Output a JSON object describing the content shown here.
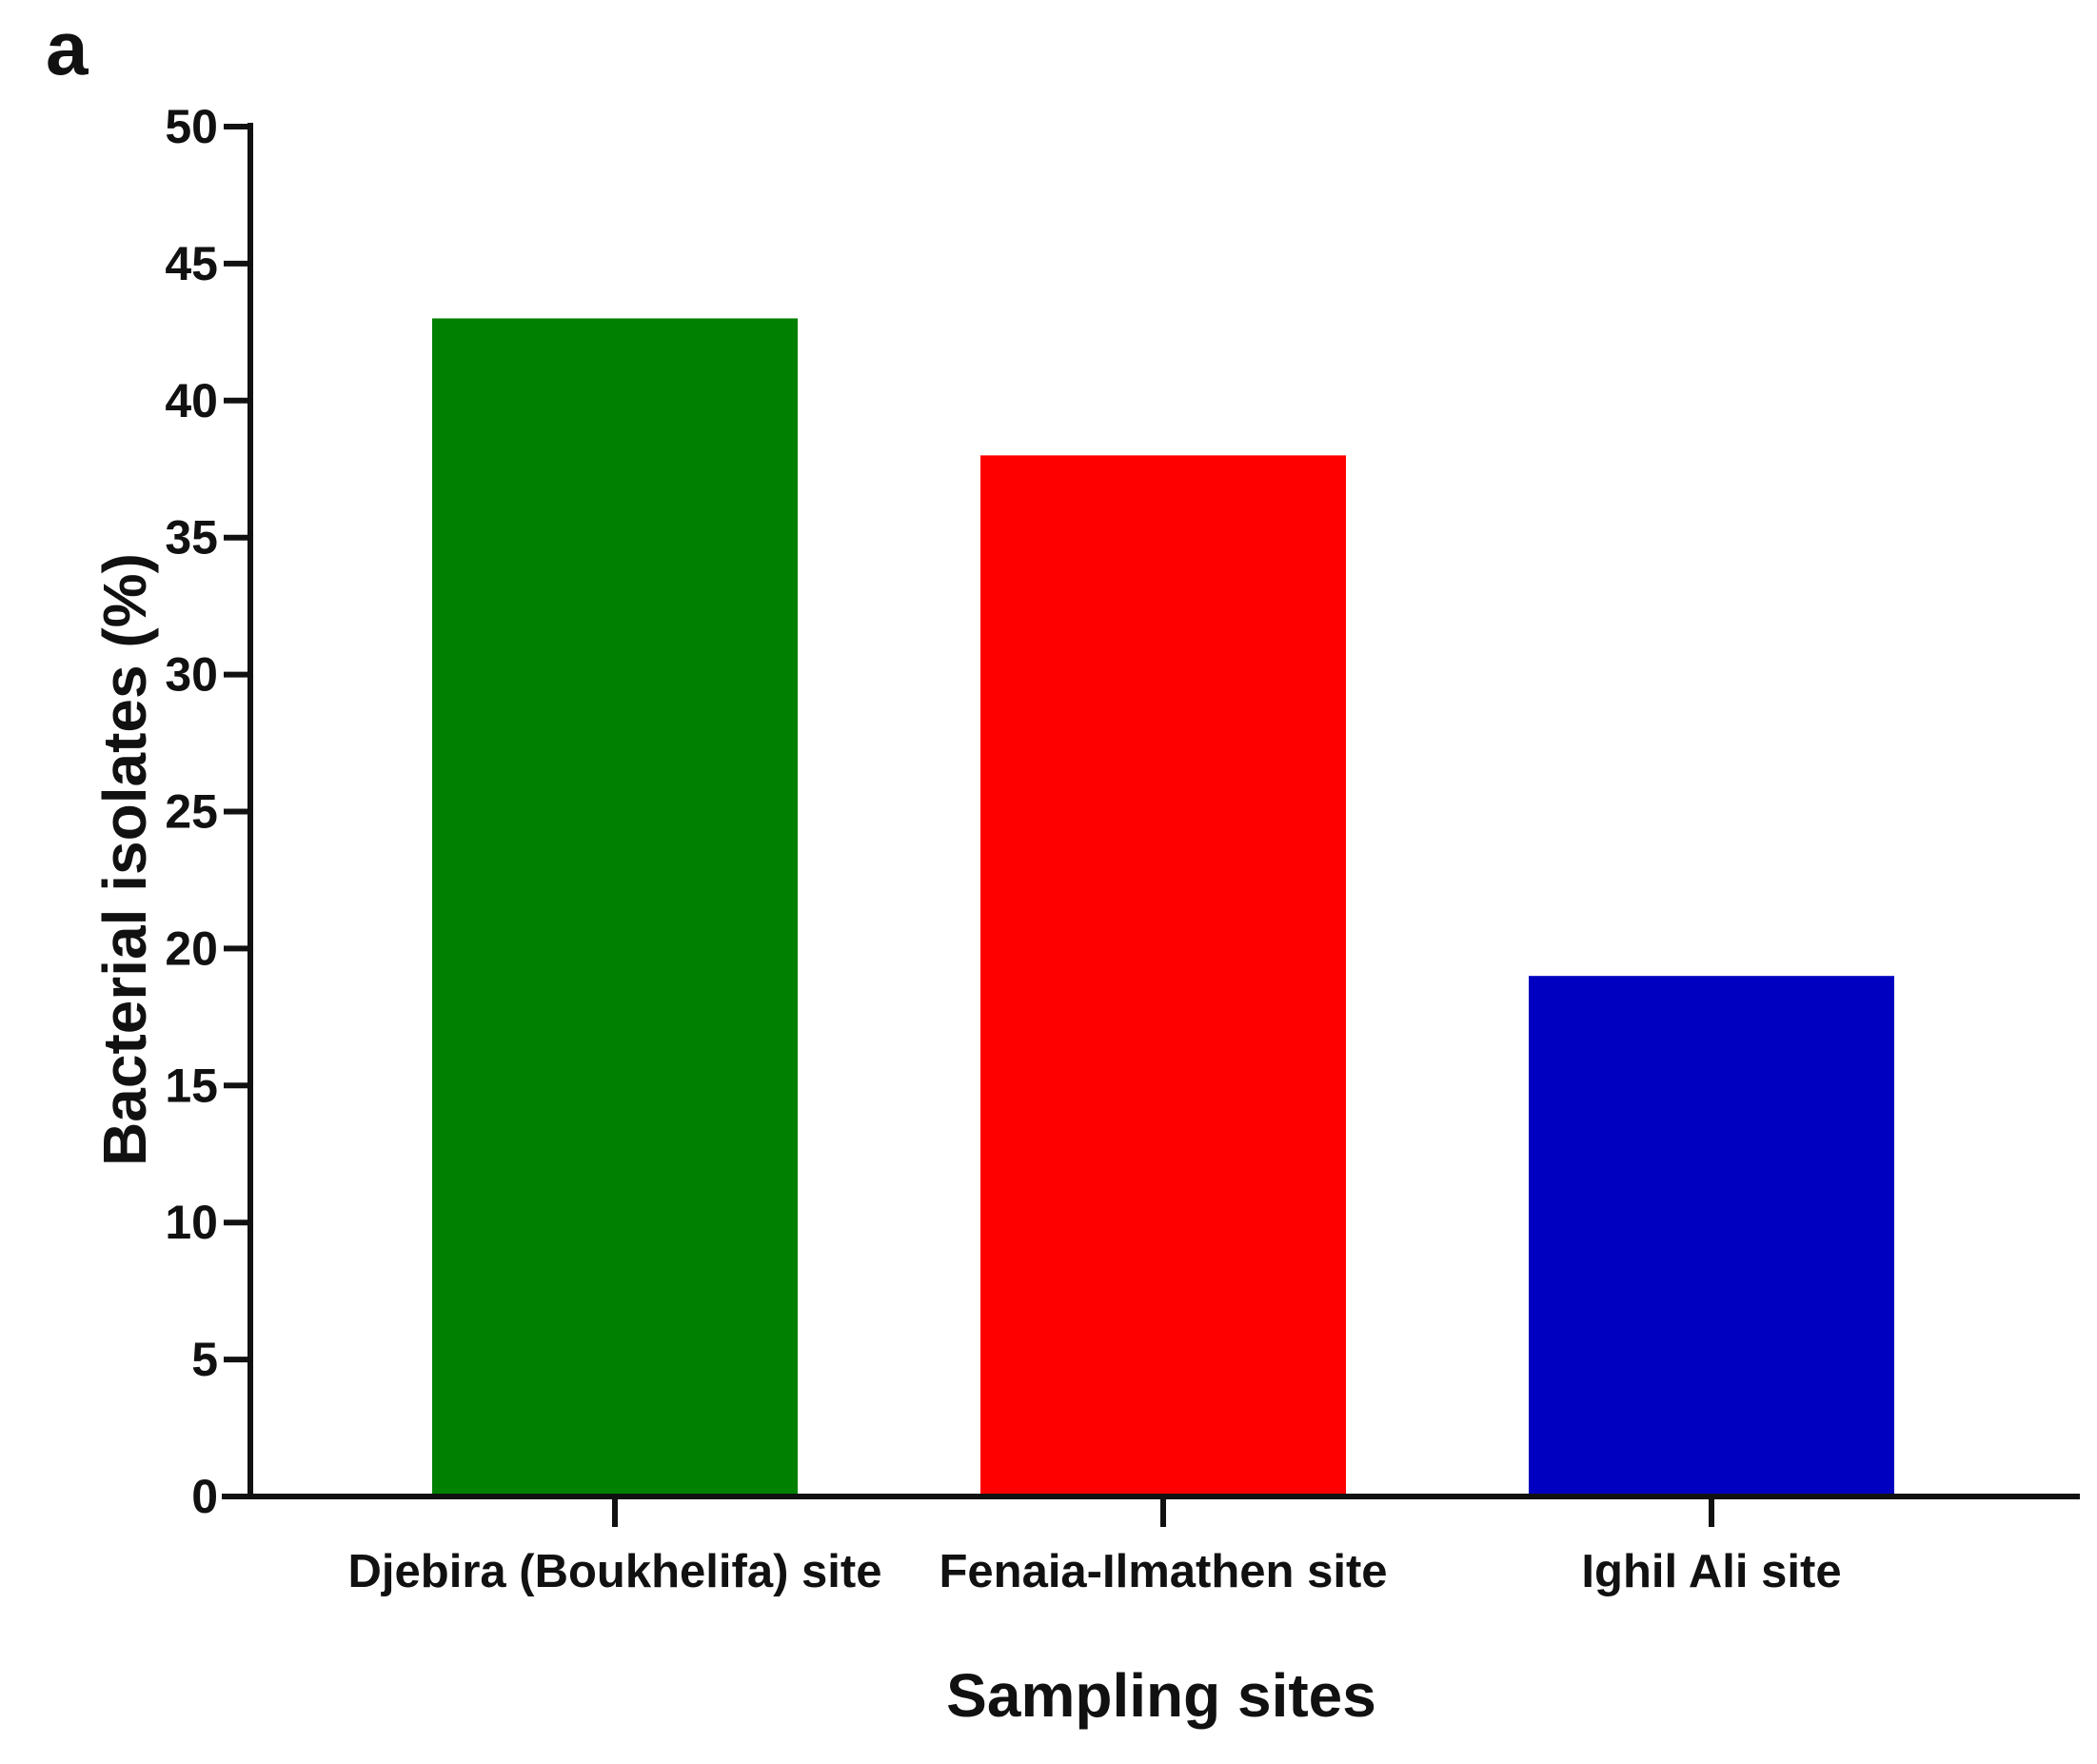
{
  "chart_data": {
    "type": "bar",
    "panel_label": "a",
    "categories": [
      "Djebira (Boukhelifa) site",
      "Fenaia-Ilmathen site",
      "Ighil Ali site"
    ],
    "values": [
      43,
      38,
      19
    ],
    "colors": [
      "#008000",
      "#ff0000",
      "#0000c0"
    ],
    "xlabel": "Sampling sites",
    "ylabel": "Bacterial isolates (%)",
    "ylim": [
      0,
      50
    ],
    "yticks": [
      0,
      5,
      10,
      15,
      20,
      25,
      30,
      35,
      40,
      45,
      50
    ],
    "grid": false,
    "legend": "none"
  }
}
